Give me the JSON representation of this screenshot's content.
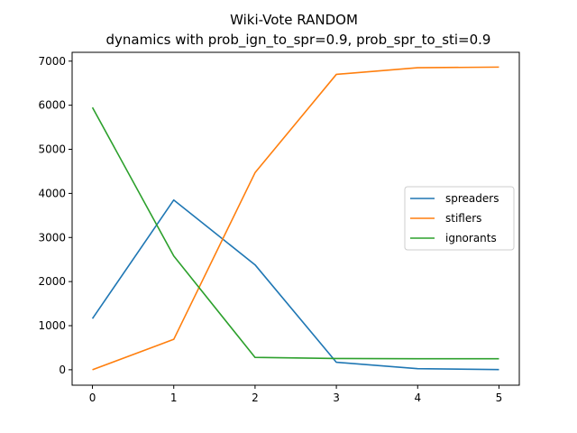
{
  "chart_data": {
    "type": "line",
    "title": "Wiki-Vote RANDOM",
    "subtitle": "dynamics with prob_ign_to_spr=0.9, prob_spr_to_sti=0.9",
    "xlabel": "",
    "ylabel": "",
    "x": [
      0,
      1,
      2,
      3,
      4,
      5
    ],
    "xlim": [
      -0.25,
      5.25
    ],
    "ylim": [
      -350,
      7200
    ],
    "xticks": [
      0,
      1,
      2,
      3,
      4,
      5
    ],
    "yticks": [
      0,
      1000,
      2000,
      3000,
      4000,
      5000,
      6000,
      7000
    ],
    "grid": false,
    "legend_position": "center-right",
    "series": [
      {
        "name": "spreaders",
        "color": "#1f77b4",
        "values": [
          1160,
          3850,
          2380,
          170,
          25,
          5
        ]
      },
      {
        "name": "stiflers",
        "color": "#ff7f0e",
        "values": [
          0,
          690,
          4470,
          6700,
          6850,
          6865
        ]
      },
      {
        "name": "ignorants",
        "color": "#2ca02c",
        "values": [
          5950,
          2580,
          280,
          255,
          250,
          250
        ]
      }
    ]
  }
}
